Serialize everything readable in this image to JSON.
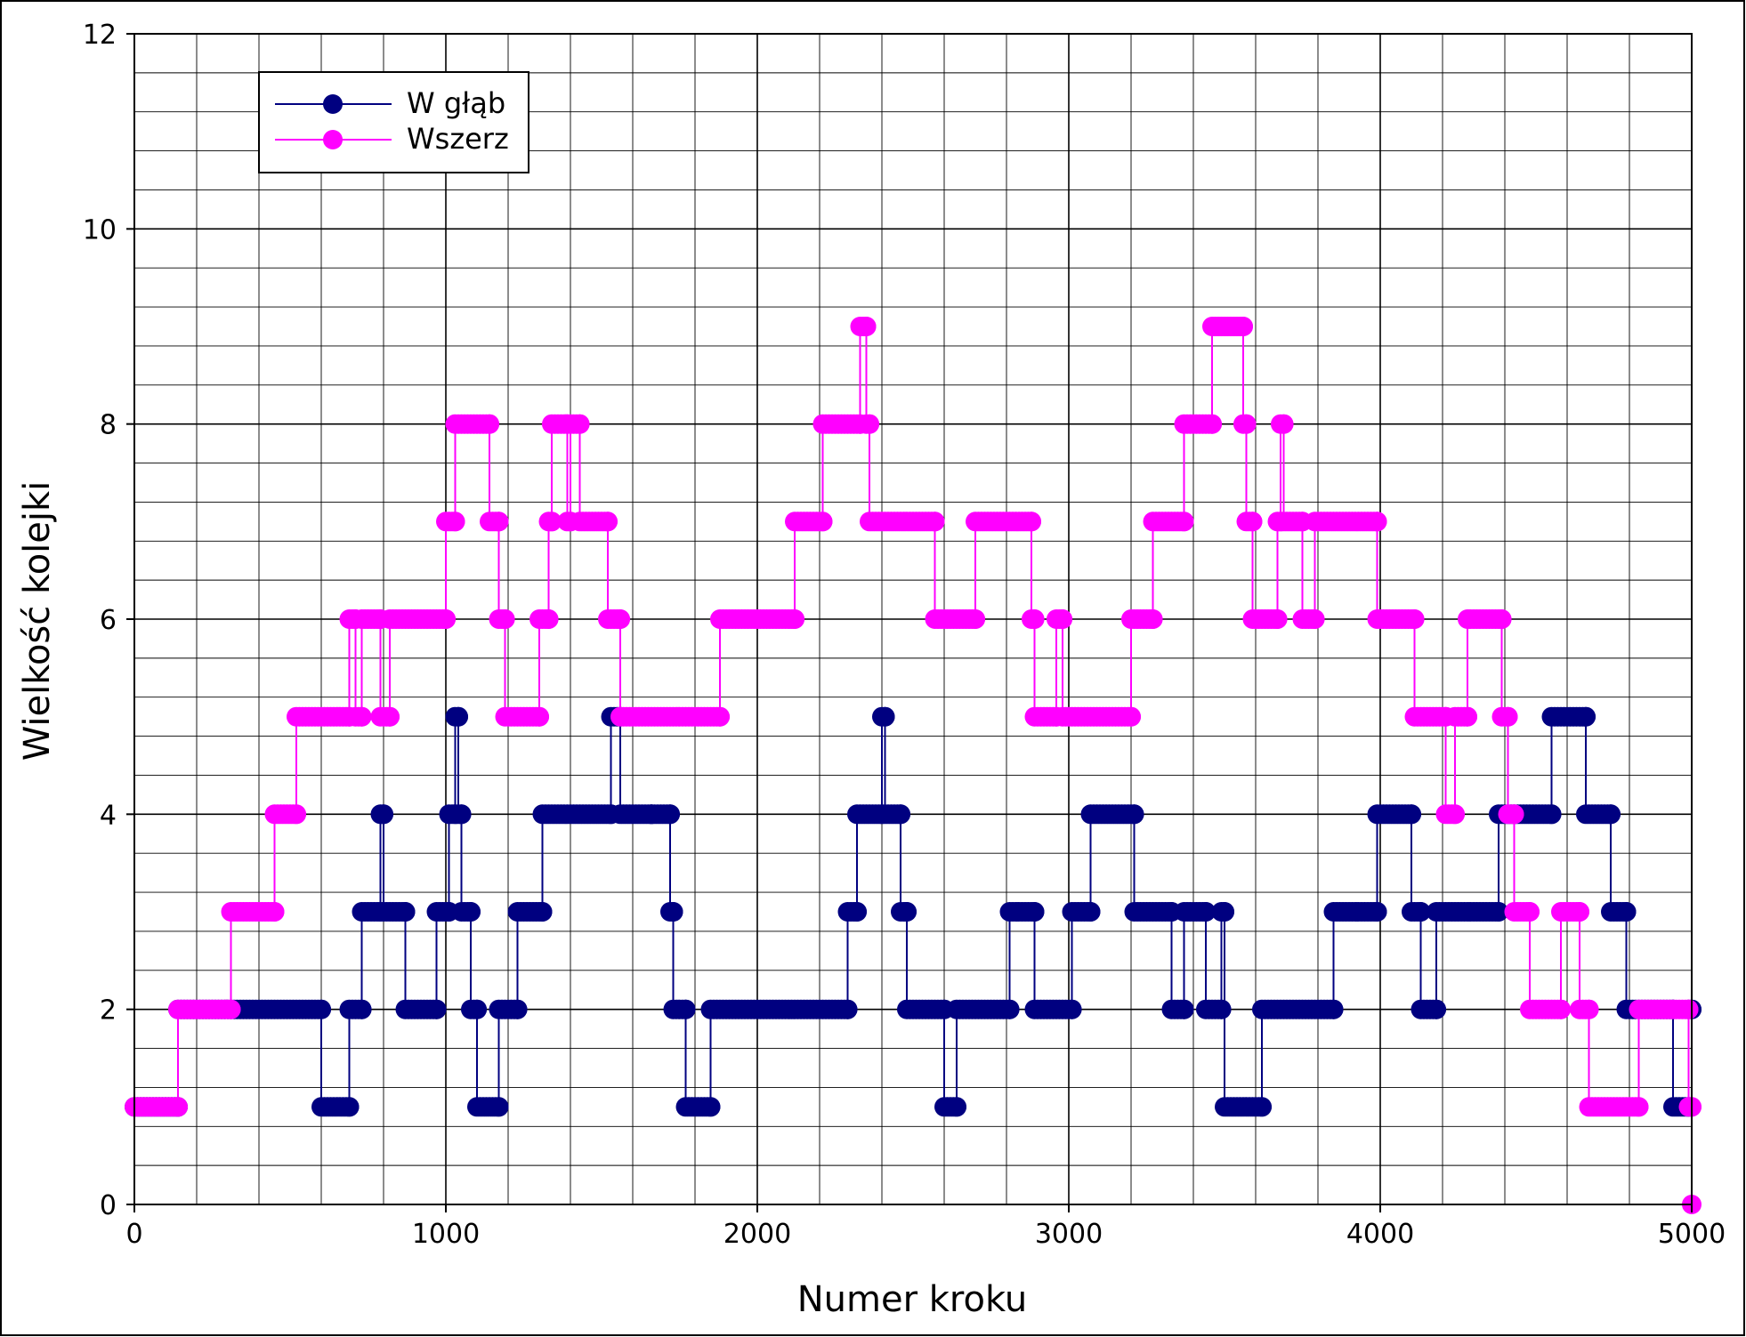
{
  "chart_data": {
    "type": "line",
    "xlabel": "Numer kroku",
    "ylabel": "Wielkość kolejki",
    "xlim": [
      0,
      5000
    ],
    "ylim": [
      0,
      12
    ],
    "x_major_ticks": [
      0,
      1000,
      2000,
      3000,
      4000,
      5000
    ],
    "x_minor_step": 200,
    "y_major_ticks": [
      0,
      2,
      4,
      6,
      8,
      10,
      12
    ],
    "y_minor_step": 0.4,
    "grid": true,
    "legend_position": "top-left",
    "series": [
      {
        "name": "W głąb",
        "color": "#000080",
        "marker": "circle",
        "points": [
          [
            0,
            1
          ],
          [
            140,
            1
          ],
          [
            140,
            2
          ],
          [
            600,
            2
          ],
          [
            600,
            1
          ],
          [
            690,
            1
          ],
          [
            690,
            2
          ],
          [
            730,
            2
          ],
          [
            730,
            3
          ],
          [
            790,
            3
          ],
          [
            790,
            4
          ],
          [
            800,
            4
          ],
          [
            800,
            3
          ],
          [
            870,
            3
          ],
          [
            870,
            2
          ],
          [
            970,
            2
          ],
          [
            970,
            3
          ],
          [
            1010,
            3
          ],
          [
            1010,
            4
          ],
          [
            1030,
            4
          ],
          [
            1030,
            5
          ],
          [
            1040,
            5
          ],
          [
            1040,
            4
          ],
          [
            1050,
            4
          ],
          [
            1050,
            3
          ],
          [
            1080,
            3
          ],
          [
            1080,
            2
          ],
          [
            1100,
            2
          ],
          [
            1100,
            1
          ],
          [
            1170,
            1
          ],
          [
            1170,
            2
          ],
          [
            1230,
            2
          ],
          [
            1230,
            3
          ],
          [
            1310,
            3
          ],
          [
            1310,
            4
          ],
          [
            1530,
            4
          ],
          [
            1530,
            5
          ],
          [
            1560,
            5
          ],
          [
            1560,
            4
          ],
          [
            1660,
            4
          ],
          [
            1660,
            4
          ],
          [
            1720,
            4
          ],
          [
            1720,
            3
          ],
          [
            1730,
            3
          ],
          [
            1730,
            2
          ],
          [
            1770,
            2
          ],
          [
            1770,
            1
          ],
          [
            1850,
            1
          ],
          [
            1850,
            2
          ],
          [
            2290,
            2
          ],
          [
            2290,
            3
          ],
          [
            2320,
            3
          ],
          [
            2320,
            4
          ],
          [
            2400,
            4
          ],
          [
            2400,
            5
          ],
          [
            2410,
            5
          ],
          [
            2410,
            4
          ],
          [
            2460,
            4
          ],
          [
            2460,
            3
          ],
          [
            2480,
            3
          ],
          [
            2480,
            2
          ],
          [
            2600,
            2
          ],
          [
            2600,
            1
          ],
          [
            2640,
            1
          ],
          [
            2640,
            2
          ],
          [
            2810,
            2
          ],
          [
            2810,
            3
          ],
          [
            2890,
            3
          ],
          [
            2890,
            2
          ],
          [
            3010,
            2
          ],
          [
            3010,
            3
          ],
          [
            3070,
            3
          ],
          [
            3070,
            4
          ],
          [
            3210,
            4
          ],
          [
            3210,
            3
          ],
          [
            3330,
            3
          ],
          [
            3330,
            2
          ],
          [
            3370,
            2
          ],
          [
            3370,
            3
          ],
          [
            3440,
            3
          ],
          [
            3440,
            2
          ],
          [
            3490,
            2
          ],
          [
            3490,
            3
          ],
          [
            3500,
            3
          ],
          [
            3500,
            1
          ],
          [
            3620,
            1
          ],
          [
            3620,
            2
          ],
          [
            3850,
            2
          ],
          [
            3850,
            3
          ],
          [
            3990,
            3
          ],
          [
            3990,
            4
          ],
          [
            4100,
            4
          ],
          [
            4100,
            3
          ],
          [
            4130,
            3
          ],
          [
            4130,
            2
          ],
          [
            4180,
            2
          ],
          [
            4180,
            3
          ],
          [
            4380,
            3
          ],
          [
            4380,
            4
          ],
          [
            4550,
            4
          ],
          [
            4550,
            5
          ],
          [
            4660,
            5
          ],
          [
            4660,
            4
          ],
          [
            4740,
            4
          ],
          [
            4740,
            3
          ],
          [
            4790,
            3
          ],
          [
            4790,
            2
          ],
          [
            4940,
            2
          ],
          [
            4940,
            1
          ],
          [
            4990,
            1
          ],
          [
            4990,
            2
          ],
          [
            5000,
            2
          ]
        ]
      },
      {
        "name": "Wszerz",
        "color": "#ff00ff",
        "marker": "circle",
        "points": [
          [
            0,
            1
          ],
          [
            140,
            1
          ],
          [
            140,
            2
          ],
          [
            310,
            2
          ],
          [
            310,
            3
          ],
          [
            450,
            3
          ],
          [
            450,
            4
          ],
          [
            520,
            4
          ],
          [
            520,
            5
          ],
          [
            690,
            5
          ],
          [
            690,
            6
          ],
          [
            710,
            6
          ],
          [
            710,
            5
          ],
          [
            730,
            5
          ],
          [
            730,
            6
          ],
          [
            790,
            6
          ],
          [
            790,
            5
          ],
          [
            820,
            5
          ],
          [
            820,
            6
          ],
          [
            1000,
            6
          ],
          [
            1000,
            7
          ],
          [
            1030,
            7
          ],
          [
            1030,
            8
          ],
          [
            1140,
            8
          ],
          [
            1140,
            7
          ],
          [
            1170,
            7
          ],
          [
            1170,
            6
          ],
          [
            1190,
            6
          ],
          [
            1190,
            5
          ],
          [
            1300,
            5
          ],
          [
            1300,
            6
          ],
          [
            1330,
            6
          ],
          [
            1330,
            7
          ],
          [
            1340,
            7
          ],
          [
            1340,
            8
          ],
          [
            1390,
            8
          ],
          [
            1390,
            7
          ],
          [
            1400,
            7
          ],
          [
            1400,
            8
          ],
          [
            1430,
            8
          ],
          [
            1430,
            7
          ],
          [
            1520,
            7
          ],
          [
            1520,
            6
          ],
          [
            1560,
            6
          ],
          [
            1560,
            5
          ],
          [
            1880,
            5
          ],
          [
            1880,
            6
          ],
          [
            2120,
            6
          ],
          [
            2120,
            7
          ],
          [
            2210,
            7
          ],
          [
            2210,
            8
          ],
          [
            2330,
            8
          ],
          [
            2330,
            9
          ],
          [
            2350,
            9
          ],
          [
            2350,
            8
          ],
          [
            2360,
            8
          ],
          [
            2360,
            7
          ],
          [
            2570,
            7
          ],
          [
            2570,
            6
          ],
          [
            2700,
            6
          ],
          [
            2700,
            7
          ],
          [
            2880,
            7
          ],
          [
            2880,
            6
          ],
          [
            2890,
            6
          ],
          [
            2890,
            5
          ],
          [
            2960,
            5
          ],
          [
            2960,
            6
          ],
          [
            2980,
            6
          ],
          [
            2980,
            5
          ],
          [
            3200,
            5
          ],
          [
            3200,
            6
          ],
          [
            3270,
            6
          ],
          [
            3270,
            7
          ],
          [
            3370,
            7
          ],
          [
            3370,
            8
          ],
          [
            3460,
            8
          ],
          [
            3460,
            9
          ],
          [
            3560,
            9
          ],
          [
            3560,
            8
          ],
          [
            3570,
            8
          ],
          [
            3570,
            7
          ],
          [
            3590,
            7
          ],
          [
            3590,
            6
          ],
          [
            3670,
            6
          ],
          [
            3670,
            7
          ],
          [
            3680,
            7
          ],
          [
            3680,
            8
          ],
          [
            3690,
            8
          ],
          [
            3690,
            7
          ],
          [
            3750,
            7
          ],
          [
            3750,
            6
          ],
          [
            3790,
            6
          ],
          [
            3790,
            7
          ],
          [
            3990,
            7
          ],
          [
            3990,
            6
          ],
          [
            4110,
            6
          ],
          [
            4110,
            5
          ],
          [
            4210,
            5
          ],
          [
            4210,
            4
          ],
          [
            4240,
            4
          ],
          [
            4240,
            5
          ],
          [
            4280,
            5
          ],
          [
            4280,
            6
          ],
          [
            4390,
            6
          ],
          [
            4390,
            5
          ],
          [
            4410,
            5
          ],
          [
            4410,
            4
          ],
          [
            4430,
            4
          ],
          [
            4430,
            3
          ],
          [
            4480,
            3
          ],
          [
            4480,
            2
          ],
          [
            4580,
            2
          ],
          [
            4580,
            3
          ],
          [
            4640,
            3
          ],
          [
            4640,
            2
          ],
          [
            4670,
            2
          ],
          [
            4670,
            1
          ],
          [
            4830,
            1
          ],
          [
            4830,
            2
          ],
          [
            4990,
            2
          ],
          [
            4990,
            1
          ],
          [
            5000,
            1
          ],
          [
            5000,
            0
          ]
        ]
      }
    ]
  }
}
